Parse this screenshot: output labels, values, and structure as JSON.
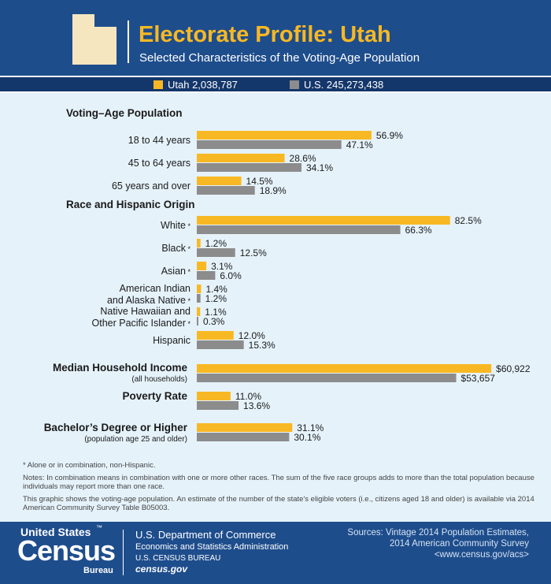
{
  "header": {
    "title": "Electorate Profile: Utah",
    "subtitle": "Selected Characteristics of the Voting-Age Population"
  },
  "legend": [
    {
      "label": "Utah 2,038,787",
      "color": "#f8b823"
    },
    {
      "label": "U.S. 245,273,438",
      "color": "#8c8c8c"
    }
  ],
  "chart_data": {
    "type": "bar",
    "orientation": "horizontal",
    "series": [
      {
        "name": "Utah 2,038,787",
        "color": "#f8b823"
      },
      {
        "name": "U.S. 245,273,438",
        "color": "#8c8c8c"
      }
    ],
    "sections": [
      {
        "heading": "Voting–Age Population",
        "items": [
          {
            "label": "18 to 44 years",
            "values": [
              56.9,
              47.1
            ],
            "value_labels": [
              "56.9%",
              "47.1%"
            ]
          },
          {
            "label": "45 to 64 years",
            "values": [
              28.6,
              34.1
            ],
            "value_labels": [
              "28.6%",
              "34.1%"
            ]
          },
          {
            "label": "65 years and over",
            "values": [
              14.5,
              18.9
            ],
            "value_labels": [
              "14.5%",
              "18.9%"
            ]
          }
        ]
      },
      {
        "heading": "Race and Hispanic Origin",
        "items": [
          {
            "label": "White*",
            "values": [
              82.5,
              66.3
            ],
            "value_labels": [
              "82.5%",
              "66.3%"
            ]
          },
          {
            "label": "Black*",
            "values": [
              1.2,
              12.5
            ],
            "value_labels": [
              "1.2%",
              "12.5%"
            ]
          },
          {
            "label": "Asian*",
            "values": [
              3.1,
              6.0
            ],
            "value_labels": [
              "3.1%",
              "6.0%"
            ]
          },
          {
            "label": "American Indian",
            "label2": "and Alaska Native*",
            "values": [
              1.4,
              1.2
            ],
            "value_labels": [
              "1.4%",
              "1.2%"
            ]
          },
          {
            "label": "Native Hawaiian and",
            "label2": "Other Pacific Islander*",
            "values": [
              1.1,
              0.3
            ],
            "value_labels": [
              "1.1%",
              "0.3%"
            ]
          },
          {
            "label": "Hispanic",
            "values": [
              12.0,
              15.3
            ],
            "value_labels": [
              "12.0%",
              "15.3%"
            ]
          }
        ]
      },
      {
        "heading": "Median Household Income",
        "subheading": "(all households)",
        "items": [
          {
            "label": "",
            "values": [
              60922,
              53657
            ],
            "value_labels": [
              "$60,922",
              "$53,657"
            ],
            "scale_max": 63500
          }
        ]
      },
      {
        "heading": "Poverty Rate",
        "items": [
          {
            "label": "",
            "values": [
              11.0,
              13.6
            ],
            "value_labels": [
              "11.0%",
              "13.6%"
            ]
          }
        ]
      },
      {
        "heading": "Bachelor’s Degree or Higher",
        "subheading": "(population age 25 and older)",
        "items": [
          {
            "label": "",
            "values": [
              31.1,
              30.1
            ],
            "value_labels": [
              "31.1%",
              "30.1%"
            ]
          }
        ]
      }
    ],
    "xlim": [
      0,
      100
    ]
  },
  "notes": {
    "footnote": "* Alone or in combination, non-Hispanic.",
    "note1": "Notes: In combination means in combination with one or more other races. The sum of the five race groups adds to more than the total population because individuals may report more than one race.",
    "note2": "This graphic shows the voting-age population. An estimate of the number of the state's eligible voters (i.e., citizens aged 18 and older) is available via 2014 American Community Survey Table B05003."
  },
  "footer": {
    "logo_line1": "United States",
    "logo_tm": "™",
    "logo_line2": "Census",
    "logo_line3": "Bureau",
    "dept_line1": "U.S. Department of Commerce",
    "dept_line2": "Economics and Statistics Administration",
    "dept_line3": "U.S. CENSUS BUREAU",
    "dept_line4": "census.gov",
    "sources_line1": "Sources: Vintage 2014 Population Estimates,",
    "sources_line2": "2014 American Community Survey",
    "sources_line3": "<www.census.gov/acs>"
  }
}
